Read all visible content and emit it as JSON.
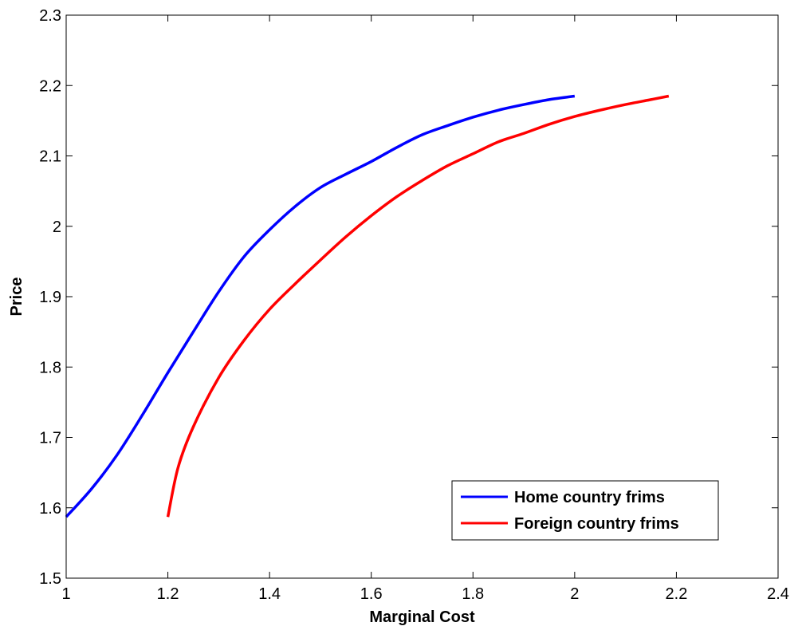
{
  "chart_data": {
    "type": "line",
    "title": "",
    "xlabel": "Marginal Cost",
    "ylabel": "Price",
    "xlim": [
      1,
      2.4
    ],
    "ylim": [
      1.5,
      2.3
    ],
    "xticks": [
      1,
      1.2,
      1.4,
      1.6,
      1.8,
      2,
      2.2,
      2.4
    ],
    "xtick_labels": [
      "1",
      "1.2",
      "1.4",
      "1.6",
      "1.8",
      "2",
      "2.2",
      "2.4"
    ],
    "yticks": [
      1.5,
      1.6,
      1.7,
      1.8,
      1.9,
      2,
      2.1,
      2.2,
      2.3
    ],
    "ytick_labels": [
      "1.5",
      "1.6",
      "1.7",
      "1.8",
      "1.9",
      "2",
      "2.1",
      "2.2",
      "2.3"
    ],
    "grid": false,
    "legend_position": "bottom-right",
    "series": [
      {
        "name": "Home country frims",
        "color": "#0000ff",
        "x": [
          1.0,
          1.05,
          1.1,
          1.15,
          1.2,
          1.25,
          1.3,
          1.35,
          1.4,
          1.45,
          1.5,
          1.55,
          1.6,
          1.65,
          1.7,
          1.75,
          1.8,
          1.85,
          1.9,
          1.95,
          2.0
        ],
        "y": [
          1.587,
          1.627,
          1.675,
          1.732,
          1.792,
          1.85,
          1.907,
          1.957,
          1.995,
          2.028,
          2.055,
          2.074,
          2.092,
          2.112,
          2.13,
          2.143,
          2.155,
          2.165,
          2.173,
          2.18,
          2.185
        ]
      },
      {
        "name": "Foreign country frims",
        "color": "#ff0000",
        "x": [
          1.2,
          1.22,
          1.25,
          1.3,
          1.35,
          1.4,
          1.45,
          1.5,
          1.55,
          1.6,
          1.65,
          1.7,
          1.75,
          1.8,
          1.85,
          1.9,
          1.95,
          2.0,
          2.05,
          2.1,
          2.15,
          2.185
        ],
        "y": [
          1.587,
          1.657,
          1.715,
          1.785,
          1.838,
          1.882,
          1.918,
          1.952,
          1.985,
          2.015,
          2.042,
          2.065,
          2.086,
          2.103,
          2.12,
          2.132,
          2.145,
          2.156,
          2.165,
          2.173,
          2.18,
          2.185
        ]
      }
    ]
  }
}
